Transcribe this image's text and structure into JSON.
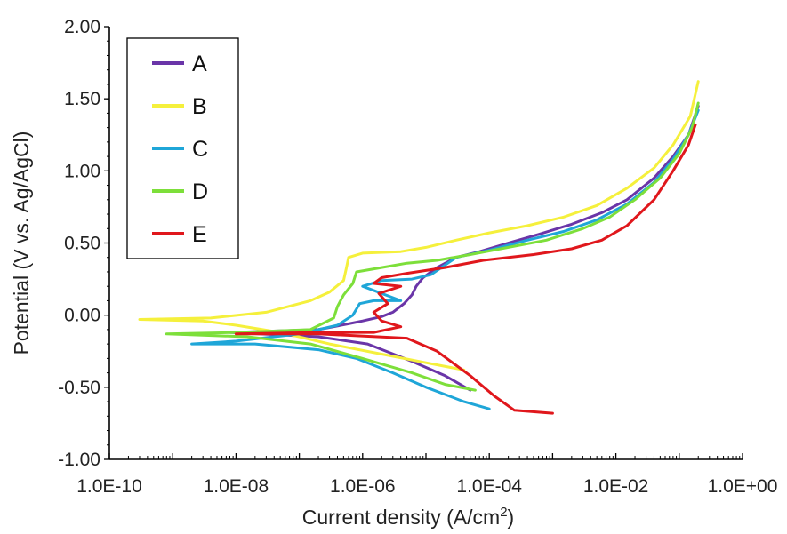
{
  "chart_data": {
    "type": "line",
    "xscale": "log",
    "xlabel": "Current density (A/cm",
    "xlabel_sup": "2",
    "xlabel_end": ")",
    "ylabel": "Potential (V vs. Ag/AgCl)",
    "xlim": [
      1e-10,
      1
    ],
    "ylim": [
      -1.0,
      2.0
    ],
    "x_tick_labels": [
      "1.0E-10",
      "1.0E-08",
      "1.0E-06",
      "1.0E-04",
      "1.0E-02",
      "1.0E+00"
    ],
    "x_tick_values": [
      1e-10,
      1e-08,
      1e-06,
      0.0001,
      0.01,
      1
    ],
    "y_tick_labels": [
      "2.00",
      "1.50",
      "1.00",
      "0.50",
      "0.00",
      "-0.50",
      "-1.00"
    ],
    "y_tick_values": [
      2.0,
      1.5,
      1.0,
      0.5,
      0.0,
      -0.5,
      -1.0
    ],
    "grid": false,
    "legend_position": "top-left",
    "series": [
      {
        "name": "A",
        "color": "#6a35a8",
        "points": [
          [
            5e-05,
            -0.52
          ],
          [
            2e-05,
            -0.42
          ],
          [
            6e-06,
            -0.32
          ],
          [
            1.2e-06,
            -0.2
          ],
          [
            2e-07,
            -0.15
          ],
          [
            8e-09,
            -0.12
          ],
          [
            2e-07,
            -0.1
          ],
          [
            6e-07,
            -0.06
          ],
          [
            1e-06,
            -0.04
          ],
          [
            2e-06,
            -0.01
          ],
          [
            3e-06,
            0.02
          ],
          [
            4.5e-06,
            0.08
          ],
          [
            6e-06,
            0.14
          ],
          [
            7e-06,
            0.2
          ],
          [
            9e-06,
            0.26
          ],
          [
            1.5e-05,
            0.33
          ],
          [
            3e-05,
            0.4
          ],
          [
            7e-05,
            0.44
          ],
          [
            0.0002,
            0.5
          ],
          [
            0.0006,
            0.56
          ],
          [
            0.002,
            0.63
          ],
          [
            0.006,
            0.71
          ],
          [
            0.015,
            0.8
          ],
          [
            0.04,
            0.95
          ],
          [
            0.08,
            1.1
          ],
          [
            0.14,
            1.25
          ],
          [
            0.2,
            1.45
          ]
        ]
      },
      {
        "name": "B",
        "color": "#f5f03c",
        "points": [
          [
            4e-05,
            -0.38
          ],
          [
            1e-05,
            -0.33
          ],
          [
            2e-06,
            -0.27
          ],
          [
            3e-07,
            -0.2
          ],
          [
            5e-08,
            -0.12
          ],
          [
            1e-08,
            -0.07
          ],
          [
            3e-09,
            -0.04
          ],
          [
            3e-10,
            -0.03
          ],
          [
            4e-09,
            -0.02
          ],
          [
            3e-08,
            0.02
          ],
          [
            1.5e-07,
            0.1
          ],
          [
            3e-07,
            0.16
          ],
          [
            5e-07,
            0.24
          ],
          [
            5.5e-07,
            0.32
          ],
          [
            6e-07,
            0.4
          ],
          [
            1e-06,
            0.43
          ],
          [
            4e-06,
            0.44
          ],
          [
            1e-05,
            0.47
          ],
          [
            3e-05,
            0.52
          ],
          [
            0.0001,
            0.57
          ],
          [
            0.0004,
            0.62
          ],
          [
            0.0015,
            0.68
          ],
          [
            0.005,
            0.76
          ],
          [
            0.015,
            0.88
          ],
          [
            0.04,
            1.02
          ],
          [
            0.08,
            1.18
          ],
          [
            0.15,
            1.38
          ],
          [
            0.2,
            1.62
          ]
        ]
      },
      {
        "name": "C",
        "color": "#1fa6d8",
        "points": [
          [
            0.0001,
            -0.65
          ],
          [
            4e-05,
            -0.6
          ],
          [
            1e-05,
            -0.5
          ],
          [
            3e-06,
            -0.4
          ],
          [
            8e-07,
            -0.3
          ],
          [
            2e-07,
            -0.24
          ],
          [
            2e-08,
            -0.2
          ],
          [
            2e-09,
            -0.2
          ],
          [
            1e-08,
            -0.18
          ],
          [
            1e-07,
            -0.13
          ],
          [
            4e-07,
            -0.07
          ],
          [
            7e-07,
            0.0
          ],
          [
            9e-07,
            0.08
          ],
          [
            1.5e-06,
            0.1
          ],
          [
            4e-06,
            0.1
          ],
          [
            1e-06,
            0.2
          ],
          [
            2e-06,
            0.24
          ],
          [
            6e-06,
            0.25
          ],
          [
            1.2e-05,
            0.28
          ],
          [
            3e-05,
            0.4
          ],
          [
            0.0001,
            0.45
          ],
          [
            0.0004,
            0.52
          ],
          [
            0.0015,
            0.58
          ],
          [
            0.005,
            0.66
          ],
          [
            0.015,
            0.77
          ],
          [
            0.04,
            0.92
          ],
          [
            0.08,
            1.08
          ],
          [
            0.14,
            1.25
          ],
          [
            0.2,
            1.42
          ]
        ]
      },
      {
        "name": "D",
        "color": "#7ddf3a",
        "points": [
          [
            6e-05,
            -0.52
          ],
          [
            2e-05,
            -0.48
          ],
          [
            6e-06,
            -0.4
          ],
          [
            1e-06,
            -0.3
          ],
          [
            1.5e-07,
            -0.2
          ],
          [
            1.5e-08,
            -0.15
          ],
          [
            8e-10,
            -0.13
          ],
          [
            1e-08,
            -0.12
          ],
          [
            1.5e-07,
            -0.1
          ],
          [
            3.5e-07,
            -0.02
          ],
          [
            4e-07,
            0.06
          ],
          [
            5e-07,
            0.14
          ],
          [
            7e-07,
            0.22
          ],
          [
            8e-07,
            0.3
          ],
          [
            2e-06,
            0.33
          ],
          [
            5e-06,
            0.36
          ],
          [
            1.5e-05,
            0.38
          ],
          [
            5e-05,
            0.42
          ],
          [
            0.0002,
            0.47
          ],
          [
            0.0008,
            0.52
          ],
          [
            0.003,
            0.6
          ],
          [
            0.008,
            0.68
          ],
          [
            0.02,
            0.8
          ],
          [
            0.05,
            0.95
          ],
          [
            0.1,
            1.12
          ],
          [
            0.16,
            1.3
          ],
          [
            0.2,
            1.47
          ]
        ]
      },
      {
        "name": "E",
        "color": "#e0171c",
        "points": [
          [
            0.001,
            -0.68
          ],
          [
            0.00025,
            -0.66
          ],
          [
            0.00012,
            -0.56
          ],
          [
            5e-05,
            -0.42
          ],
          [
            1.5e-05,
            -0.25
          ],
          [
            5e-06,
            -0.16
          ],
          [
            2e-07,
            -0.13
          ],
          [
            1e-08,
            -0.13
          ],
          [
            2e-07,
            -0.12
          ],
          [
            1.5e-06,
            -0.12
          ],
          [
            4e-06,
            -0.08
          ],
          [
            2e-06,
            -0.04
          ],
          [
            1.5e-06,
            0.02
          ],
          [
            2.5e-06,
            0.08
          ],
          [
            1.8e-06,
            0.15
          ],
          [
            4e-06,
            0.2
          ],
          [
            1.5e-06,
            0.22
          ],
          [
            2e-06,
            0.26
          ],
          [
            5e-06,
            0.29
          ],
          [
            2e-05,
            0.33
          ],
          [
            8e-05,
            0.38
          ],
          [
            0.0005,
            0.42
          ],
          [
            0.002,
            0.46
          ],
          [
            0.006,
            0.52
          ],
          [
            0.015,
            0.62
          ],
          [
            0.04,
            0.8
          ],
          [
            0.08,
            1.0
          ],
          [
            0.14,
            1.18
          ],
          [
            0.18,
            1.32
          ]
        ]
      }
    ]
  }
}
